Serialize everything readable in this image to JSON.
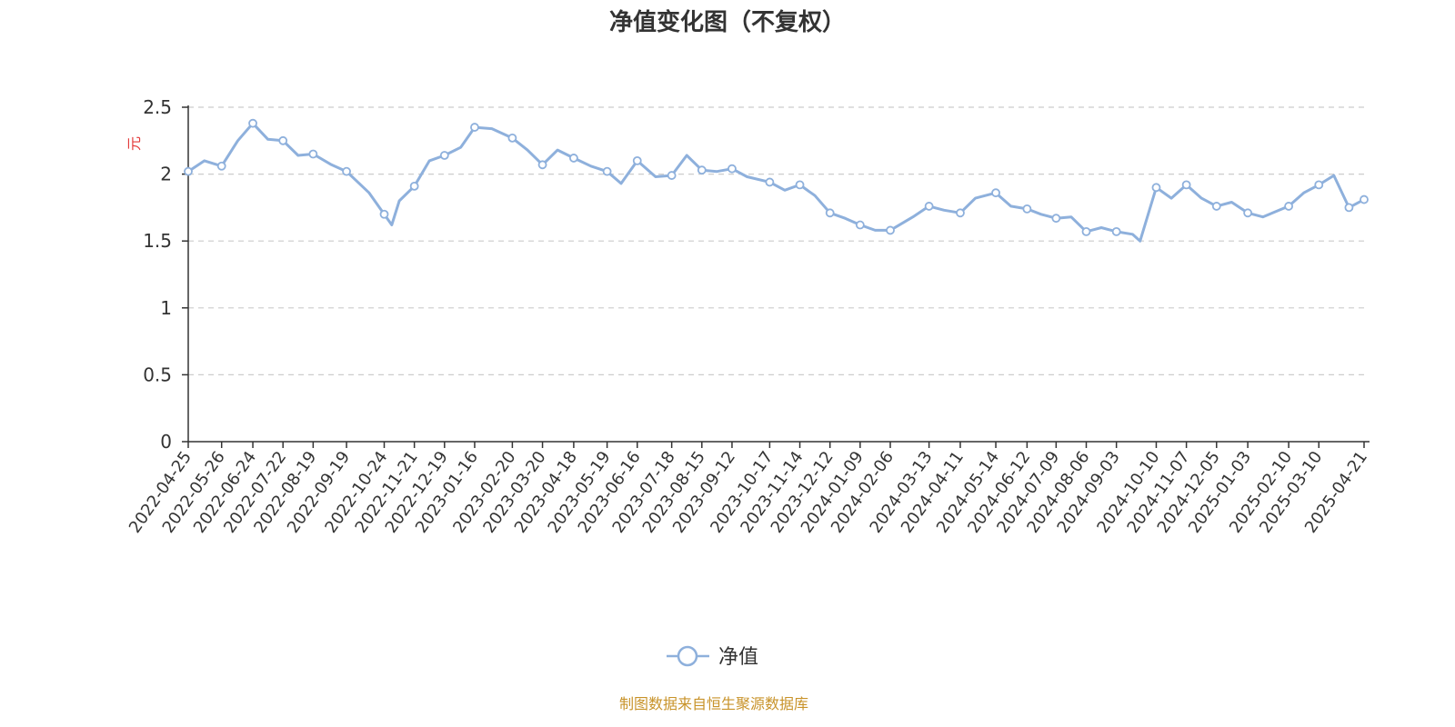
{
  "chart_data": {
    "type": "line",
    "title": "净值变化图（不复权）",
    "ylabel": "元",
    "ylim": [
      0,
      2.5
    ],
    "yticks": [
      "0",
      "0.5",
      "1",
      "1.5",
      "2",
      "2.5"
    ],
    "grid": "horizontal-dashed",
    "legend_position": "bottom-center",
    "x_tick_labels": [
      "2022-04-25",
      "2022-05-26",
      "2022-06-24",
      "2022-07-22",
      "2022-08-19",
      "2022-09-19",
      "2022-10-24",
      "2022-11-21",
      "2022-12-19",
      "2023-01-16",
      "2023-02-20",
      "2023-03-20",
      "2023-04-18",
      "2023-05-19",
      "2023-06-16",
      "2023-07-18",
      "2023-08-15",
      "2023-09-12",
      "2023-10-17",
      "2023-11-14",
      "2023-12-12",
      "2024-01-09",
      "2024-02-06",
      "2024-03-13",
      "2024-04-11",
      "2024-05-14",
      "2024-06-12",
      "2024-07-09",
      "2024-08-06",
      "2024-09-03",
      "2024-10-10",
      "2024-11-07",
      "2024-12-05",
      "2025-01-03",
      "2025-02-10",
      "2025-03-10",
      "2025-04-21"
    ],
    "series": [
      {
        "name": "净值",
        "color": "#8eb0dc",
        "x": [
          "2022-04-25",
          "2022-05-10",
          "2022-05-26",
          "2022-06-10",
          "2022-06-24",
          "2022-07-08",
          "2022-07-22",
          "2022-08-05",
          "2022-08-19",
          "2022-09-05",
          "2022-09-19",
          "2022-10-10",
          "2022-10-24",
          "2022-10-31",
          "2022-11-07",
          "2022-11-21",
          "2022-12-05",
          "2022-12-19",
          "2023-01-03",
          "2023-01-16",
          "2023-02-01",
          "2023-02-20",
          "2023-03-06",
          "2023-03-20",
          "2023-04-03",
          "2023-04-18",
          "2023-05-04",
          "2023-05-19",
          "2023-06-01",
          "2023-06-16",
          "2023-07-03",
          "2023-07-18",
          "2023-08-01",
          "2023-08-15",
          "2023-08-29",
          "2023-09-12",
          "2023-09-26",
          "2023-10-17",
          "2023-10-31",
          "2023-11-14",
          "2023-11-28",
          "2023-12-12",
          "2023-12-26",
          "2024-01-09",
          "2024-01-23",
          "2024-02-06",
          "2024-02-27",
          "2024-03-13",
          "2024-03-27",
          "2024-04-11",
          "2024-04-25",
          "2024-05-14",
          "2024-05-28",
          "2024-06-12",
          "2024-06-25",
          "2024-07-09",
          "2024-07-23",
          "2024-08-06",
          "2024-08-20",
          "2024-09-03",
          "2024-09-18",
          "2024-09-25",
          "2024-10-10",
          "2024-10-24",
          "2024-11-07",
          "2024-11-21",
          "2024-12-05",
          "2024-12-19",
          "2025-01-03",
          "2025-01-17",
          "2025-02-10",
          "2025-02-24",
          "2025-03-10",
          "2025-03-24",
          "2025-04-07",
          "2025-04-21"
        ],
        "values": [
          2.02,
          2.1,
          2.06,
          2.25,
          2.38,
          2.26,
          2.25,
          2.14,
          2.15,
          2.07,
          2.02,
          1.86,
          1.7,
          1.62,
          1.8,
          1.91,
          2.1,
          2.14,
          2.2,
          2.35,
          2.34,
          2.27,
          2.18,
          2.07,
          2.18,
          2.12,
          2.06,
          2.02,
          1.93,
          2.1,
          1.98,
          1.99,
          2.14,
          2.03,
          2.02,
          2.04,
          1.98,
          1.94,
          1.88,
          1.92,
          1.84,
          1.71,
          1.67,
          1.62,
          1.58,
          1.58,
          1.68,
          1.76,
          1.73,
          1.71,
          1.82,
          1.86,
          1.76,
          1.74,
          1.7,
          1.67,
          1.68,
          1.57,
          1.6,
          1.57,
          1.55,
          1.5,
          1.9,
          1.82,
          1.92,
          1.82,
          1.76,
          1.79,
          1.71,
          1.68,
          1.76,
          1.86,
          1.92,
          1.99,
          1.75,
          1.81
        ]
      }
    ],
    "marker_dates": [
      "2022-04-25",
      "2022-05-26",
      "2022-06-24",
      "2022-07-22",
      "2022-08-19",
      "2022-09-19",
      "2022-10-24",
      "2022-11-21",
      "2022-12-19",
      "2023-01-16",
      "2023-02-20",
      "2023-03-20",
      "2023-04-18",
      "2023-05-19",
      "2023-06-16",
      "2023-07-18",
      "2023-08-15",
      "2023-09-12",
      "2023-10-17",
      "2023-11-14",
      "2023-12-12",
      "2024-01-09",
      "2024-02-06",
      "2024-03-13",
      "2024-04-11",
      "2024-05-14",
      "2024-06-12",
      "2024-07-09",
      "2024-08-06",
      "2024-09-03",
      "2024-10-10",
      "2024-11-07",
      "2024-12-05",
      "2025-01-03",
      "2025-02-10",
      "2025-03-10",
      "2025-04-07",
      "2025-04-21"
    ]
  },
  "footer": {
    "source_text": "制图数据来自恒生聚源数据库",
    "source_color": "#c8932a"
  },
  "colors": {
    "unit_label": "#e33b3b",
    "grid": "#cccccc",
    "axis": "#333333"
  }
}
